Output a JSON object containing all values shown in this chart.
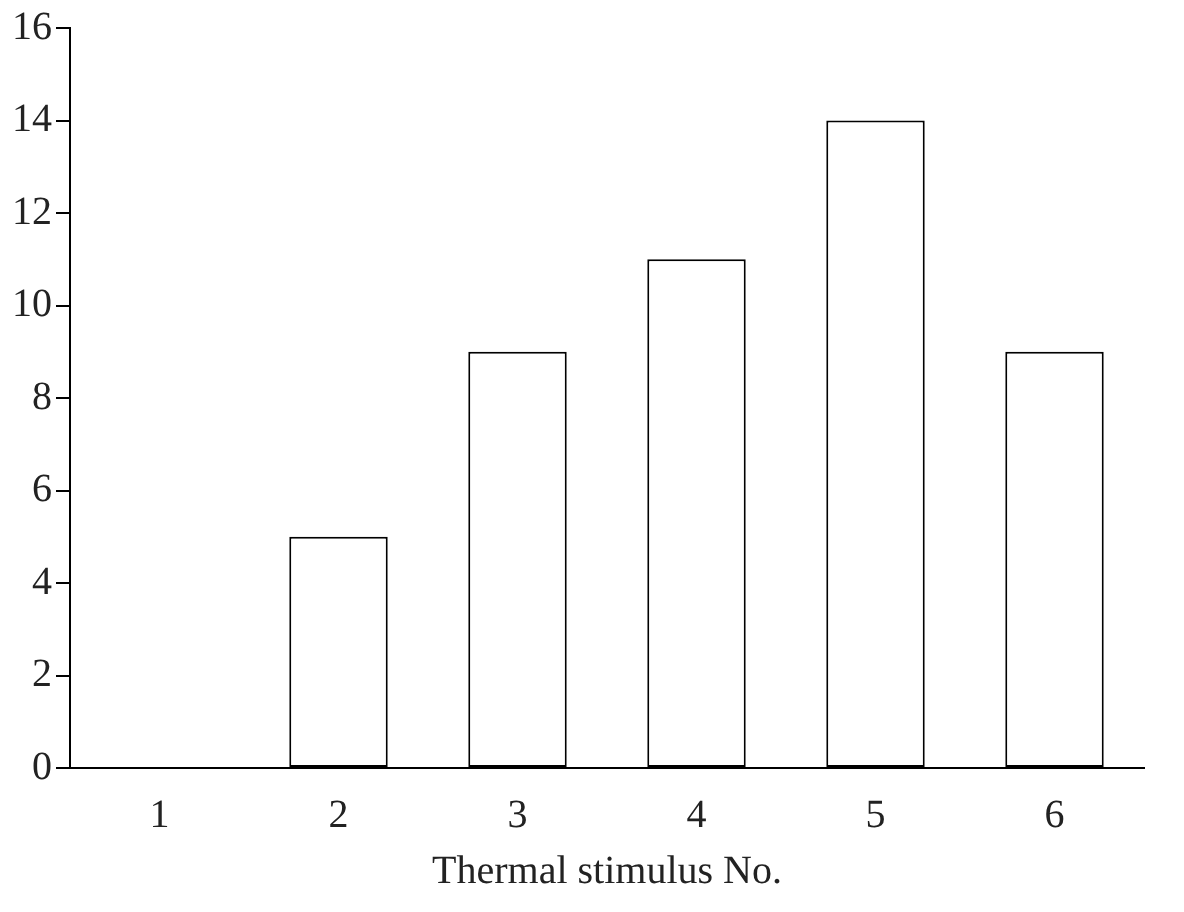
{
  "chart_data": {
    "type": "bar",
    "xlabel": "Thermal stimulus No.",
    "categories": [
      "1",
      "2",
      "3",
      "4",
      "5",
      "6"
    ],
    "values": [
      0,
      5,
      9,
      11,
      14,
      9
    ],
    "color": "#ffffff",
    "ylim": [
      0,
      16
    ],
    "yticks": [
      0,
      2,
      4,
      6,
      8,
      10,
      12,
      14,
      16
    ]
  }
}
